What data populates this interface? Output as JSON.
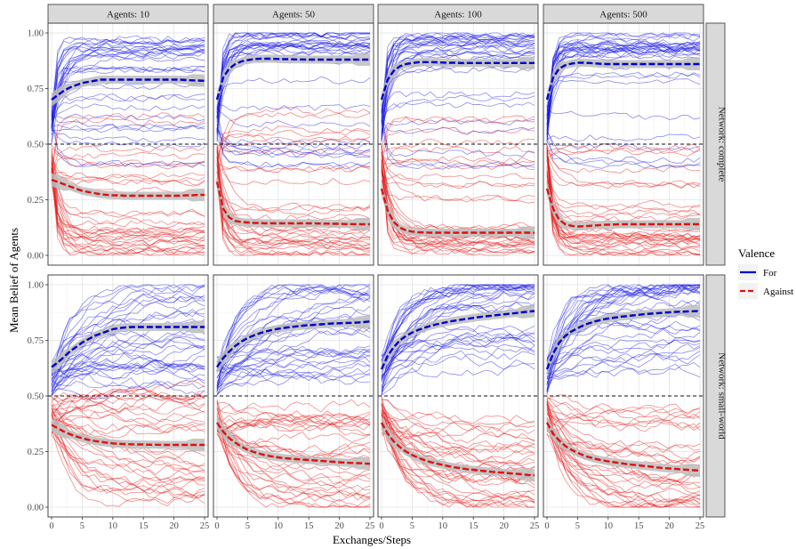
{
  "chart_data": {
    "type": "line",
    "facet_columns": [
      "Agents: 10",
      "Agents: 50",
      "Agents: 100",
      "Agents: 500"
    ],
    "facet_rows": [
      "Network: complete",
      "Network: small-world"
    ],
    "xlabel": "Exchanges/Steps",
    "ylabel": "Mean Belief of Agents",
    "xlim": [
      0,
      25
    ],
    "ylim": [
      0,
      1
    ],
    "xticks": [
      "0",
      "5",
      "10",
      "15",
      "20",
      "25"
    ],
    "yticks": [
      "0.00",
      "0.25",
      "0.50",
      "0.75",
      "1.00"
    ],
    "reference_line": 0.5,
    "legend": {
      "title": "Valence",
      "placement": "right",
      "entries": [
        {
          "label": "For",
          "color": "#0000cc"
        },
        {
          "label": "Against",
          "color": "#dd1111"
        }
      ]
    },
    "colors": {
      "for": "#1a1ae6",
      "against": "#e61a1a",
      "strip": "#d9d9d9",
      "smooth_band": "#bdbdbd"
    },
    "x": [
      0,
      1,
      2,
      3,
      4,
      5,
      6,
      7,
      8,
      9,
      10,
      11,
      12,
      13,
      14,
      15,
      16,
      17,
      18,
      19,
      20,
      21,
      22,
      23,
      24,
      25
    ],
    "panels": [
      {
        "row": 0,
        "col": 0,
        "for_mean": [
          0.7,
          0.72,
          0.74,
          0.755,
          0.765,
          0.775,
          0.78,
          0.785,
          0.79,
          0.79,
          0.79,
          0.79,
          0.79,
          0.79,
          0.79,
          0.79,
          0.79,
          0.79,
          0.79,
          0.79,
          0.79,
          0.79,
          0.788,
          0.787,
          0.786,
          0.785
        ],
        "against_mean": [
          0.34,
          0.33,
          0.32,
          0.31,
          0.3,
          0.29,
          0.285,
          0.28,
          0.275,
          0.272,
          0.27,
          0.27,
          0.268,
          0.268,
          0.268,
          0.268,
          0.268,
          0.268,
          0.268,
          0.268,
          0.268,
          0.268,
          0.27,
          0.27,
          0.272,
          0.272
        ]
      },
      {
        "row": 0,
        "col": 1,
        "for_mean": [
          0.7,
          0.8,
          0.84,
          0.86,
          0.872,
          0.878,
          0.882,
          0.884,
          0.884,
          0.884,
          0.883,
          0.882,
          0.882,
          0.881,
          0.881,
          0.88,
          0.88,
          0.88,
          0.88,
          0.88,
          0.88,
          0.88,
          0.88,
          0.88,
          0.88,
          0.88
        ],
        "against_mean": [
          0.33,
          0.21,
          0.17,
          0.155,
          0.15,
          0.148,
          0.146,
          0.145,
          0.144,
          0.144,
          0.144,
          0.144,
          0.144,
          0.144,
          0.144,
          0.144,
          0.144,
          0.143,
          0.143,
          0.142,
          0.142,
          0.141,
          0.141,
          0.14,
          0.14,
          0.14
        ]
      },
      {
        "row": 0,
        "col": 2,
        "for_mean": [
          0.7,
          0.79,
          0.83,
          0.85,
          0.86,
          0.865,
          0.868,
          0.869,
          0.869,
          0.868,
          0.867,
          0.866,
          0.866,
          0.865,
          0.865,
          0.865,
          0.865,
          0.865,
          0.865,
          0.865,
          0.865,
          0.865,
          0.865,
          0.865,
          0.865,
          0.865
        ],
        "against_mean": [
          0.3,
          0.2,
          0.15,
          0.125,
          0.113,
          0.107,
          0.104,
          0.103,
          0.102,
          0.102,
          0.102,
          0.102,
          0.102,
          0.102,
          0.102,
          0.102,
          0.102,
          0.102,
          0.102,
          0.102,
          0.102,
          0.102,
          0.102,
          0.102,
          0.102,
          0.102
        ]
      },
      {
        "row": 0,
        "col": 3,
        "for_mean": [
          0.7,
          0.8,
          0.84,
          0.855,
          0.862,
          0.866,
          0.866,
          0.865,
          0.863,
          0.861,
          0.86,
          0.86,
          0.86,
          0.86,
          0.86,
          0.86,
          0.86,
          0.86,
          0.86,
          0.86,
          0.86,
          0.86,
          0.86,
          0.86,
          0.86,
          0.86
        ],
        "against_mean": [
          0.3,
          0.21,
          0.16,
          0.14,
          0.133,
          0.13,
          0.131,
          0.133,
          0.135,
          0.137,
          0.138,
          0.139,
          0.14,
          0.14,
          0.14,
          0.14,
          0.14,
          0.14,
          0.14,
          0.14,
          0.14,
          0.14,
          0.14,
          0.14,
          0.14,
          0.14
        ]
      },
      {
        "row": 1,
        "col": 0,
        "for_mean": [
          0.63,
          0.65,
          0.675,
          0.7,
          0.72,
          0.74,
          0.755,
          0.77,
          0.78,
          0.79,
          0.8,
          0.805,
          0.808,
          0.81,
          0.81,
          0.81,
          0.81,
          0.81,
          0.81,
          0.81,
          0.81,
          0.81,
          0.81,
          0.81,
          0.81,
          0.81
        ],
        "against_mean": [
          0.37,
          0.355,
          0.34,
          0.328,
          0.318,
          0.31,
          0.303,
          0.298,
          0.294,
          0.29,
          0.287,
          0.285,
          0.284,
          0.283,
          0.282,
          0.282,
          0.281,
          0.281,
          0.28,
          0.28,
          0.28,
          0.28,
          0.28,
          0.28,
          0.28,
          0.28
        ]
      },
      {
        "row": 1,
        "col": 1,
        "for_mean": [
          0.63,
          0.67,
          0.7,
          0.725,
          0.745,
          0.76,
          0.772,
          0.782,
          0.79,
          0.797,
          0.802,
          0.806,
          0.81,
          0.813,
          0.816,
          0.818,
          0.82,
          0.822,
          0.824,
          0.826,
          0.827,
          0.828,
          0.829,
          0.83,
          0.832,
          0.835
        ],
        "against_mean": [
          0.38,
          0.34,
          0.31,
          0.29,
          0.272,
          0.258,
          0.248,
          0.24,
          0.233,
          0.228,
          0.224,
          0.22,
          0.218,
          0.216,
          0.214,
          0.212,
          0.21,
          0.208,
          0.206,
          0.204,
          0.202,
          0.2,
          0.199,
          0.198,
          0.197,
          0.195
        ]
      },
      {
        "row": 1,
        "col": 2,
        "for_mean": [
          0.62,
          0.68,
          0.72,
          0.75,
          0.77,
          0.785,
          0.797,
          0.807,
          0.815,
          0.822,
          0.828,
          0.834,
          0.839,
          0.843,
          0.847,
          0.851,
          0.855,
          0.858,
          0.861,
          0.864,
          0.867,
          0.87,
          0.873,
          0.876,
          0.879,
          0.882
        ],
        "against_mean": [
          0.38,
          0.33,
          0.295,
          0.27,
          0.25,
          0.235,
          0.222,
          0.212,
          0.203,
          0.196,
          0.19,
          0.184,
          0.179,
          0.175,
          0.171,
          0.168,
          0.165,
          0.162,
          0.159,
          0.157,
          0.155,
          0.152,
          0.15,
          0.148,
          0.145,
          0.143
        ]
      },
      {
        "row": 1,
        "col": 3,
        "for_mean": [
          0.62,
          0.69,
          0.74,
          0.77,
          0.79,
          0.805,
          0.818,
          0.828,
          0.836,
          0.843,
          0.848,
          0.852,
          0.856,
          0.859,
          0.862,
          0.865,
          0.868,
          0.87,
          0.872,
          0.874,
          0.876,
          0.878,
          0.879,
          0.88,
          0.881,
          0.882
        ],
        "against_mean": [
          0.38,
          0.33,
          0.3,
          0.275,
          0.258,
          0.244,
          0.233,
          0.224,
          0.217,
          0.211,
          0.206,
          0.202,
          0.198,
          0.194,
          0.191,
          0.188,
          0.185,
          0.182,
          0.179,
          0.176,
          0.174,
          0.172,
          0.17,
          0.168,
          0.166,
          0.164
        ]
      }
    ]
  }
}
